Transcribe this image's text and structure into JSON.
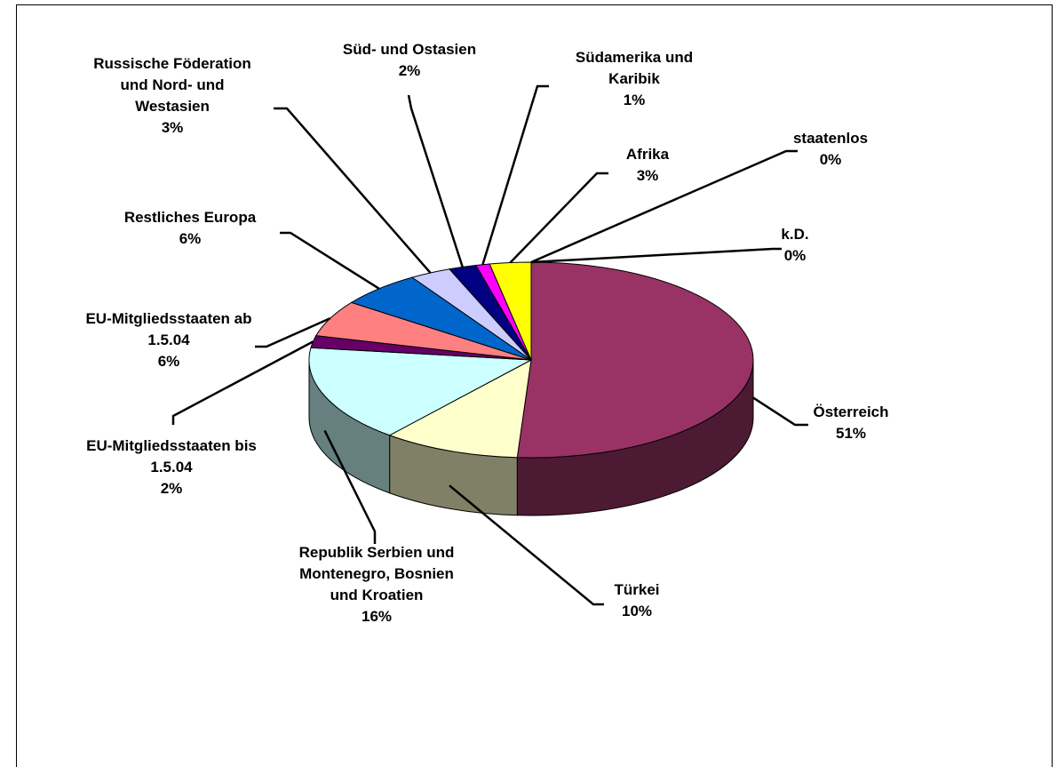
{
  "chart_data": {
    "type": "pie3d",
    "categories": [
      "Österreich",
      "Türkei",
      "Republik Serbien und Montenegro, Bosnien und Kroatien",
      "EU-Mitgliedsstaaten bis 1.5.04",
      "EU-Mitgliedsstaaten ab 1.5.04",
      "Restliches Europa",
      "Russische Föderation und Nord- und Westasien",
      "Süd- und Ostasien",
      "Südamerika und Karibik",
      "Afrika",
      "staatenlos",
      "k.D."
    ],
    "values": [
      51,
      10,
      16,
      2,
      6,
      6,
      3,
      2,
      1,
      3,
      0,
      0
    ],
    "value_labels": [
      "51%",
      "10%",
      "16%",
      "2%",
      "6%",
      "6%",
      "3%",
      "2%",
      "1%",
      "3%",
      "0%",
      "0%"
    ],
    "colors": [
      "#993366",
      "#ffffcc",
      "#ccffff",
      "#660066",
      "#ff8080",
      "#0066cc",
      "#ccccff",
      "#000080",
      "#ff00ff",
      "#ffff00",
      "#00ffff",
      "#800000"
    ]
  }
}
